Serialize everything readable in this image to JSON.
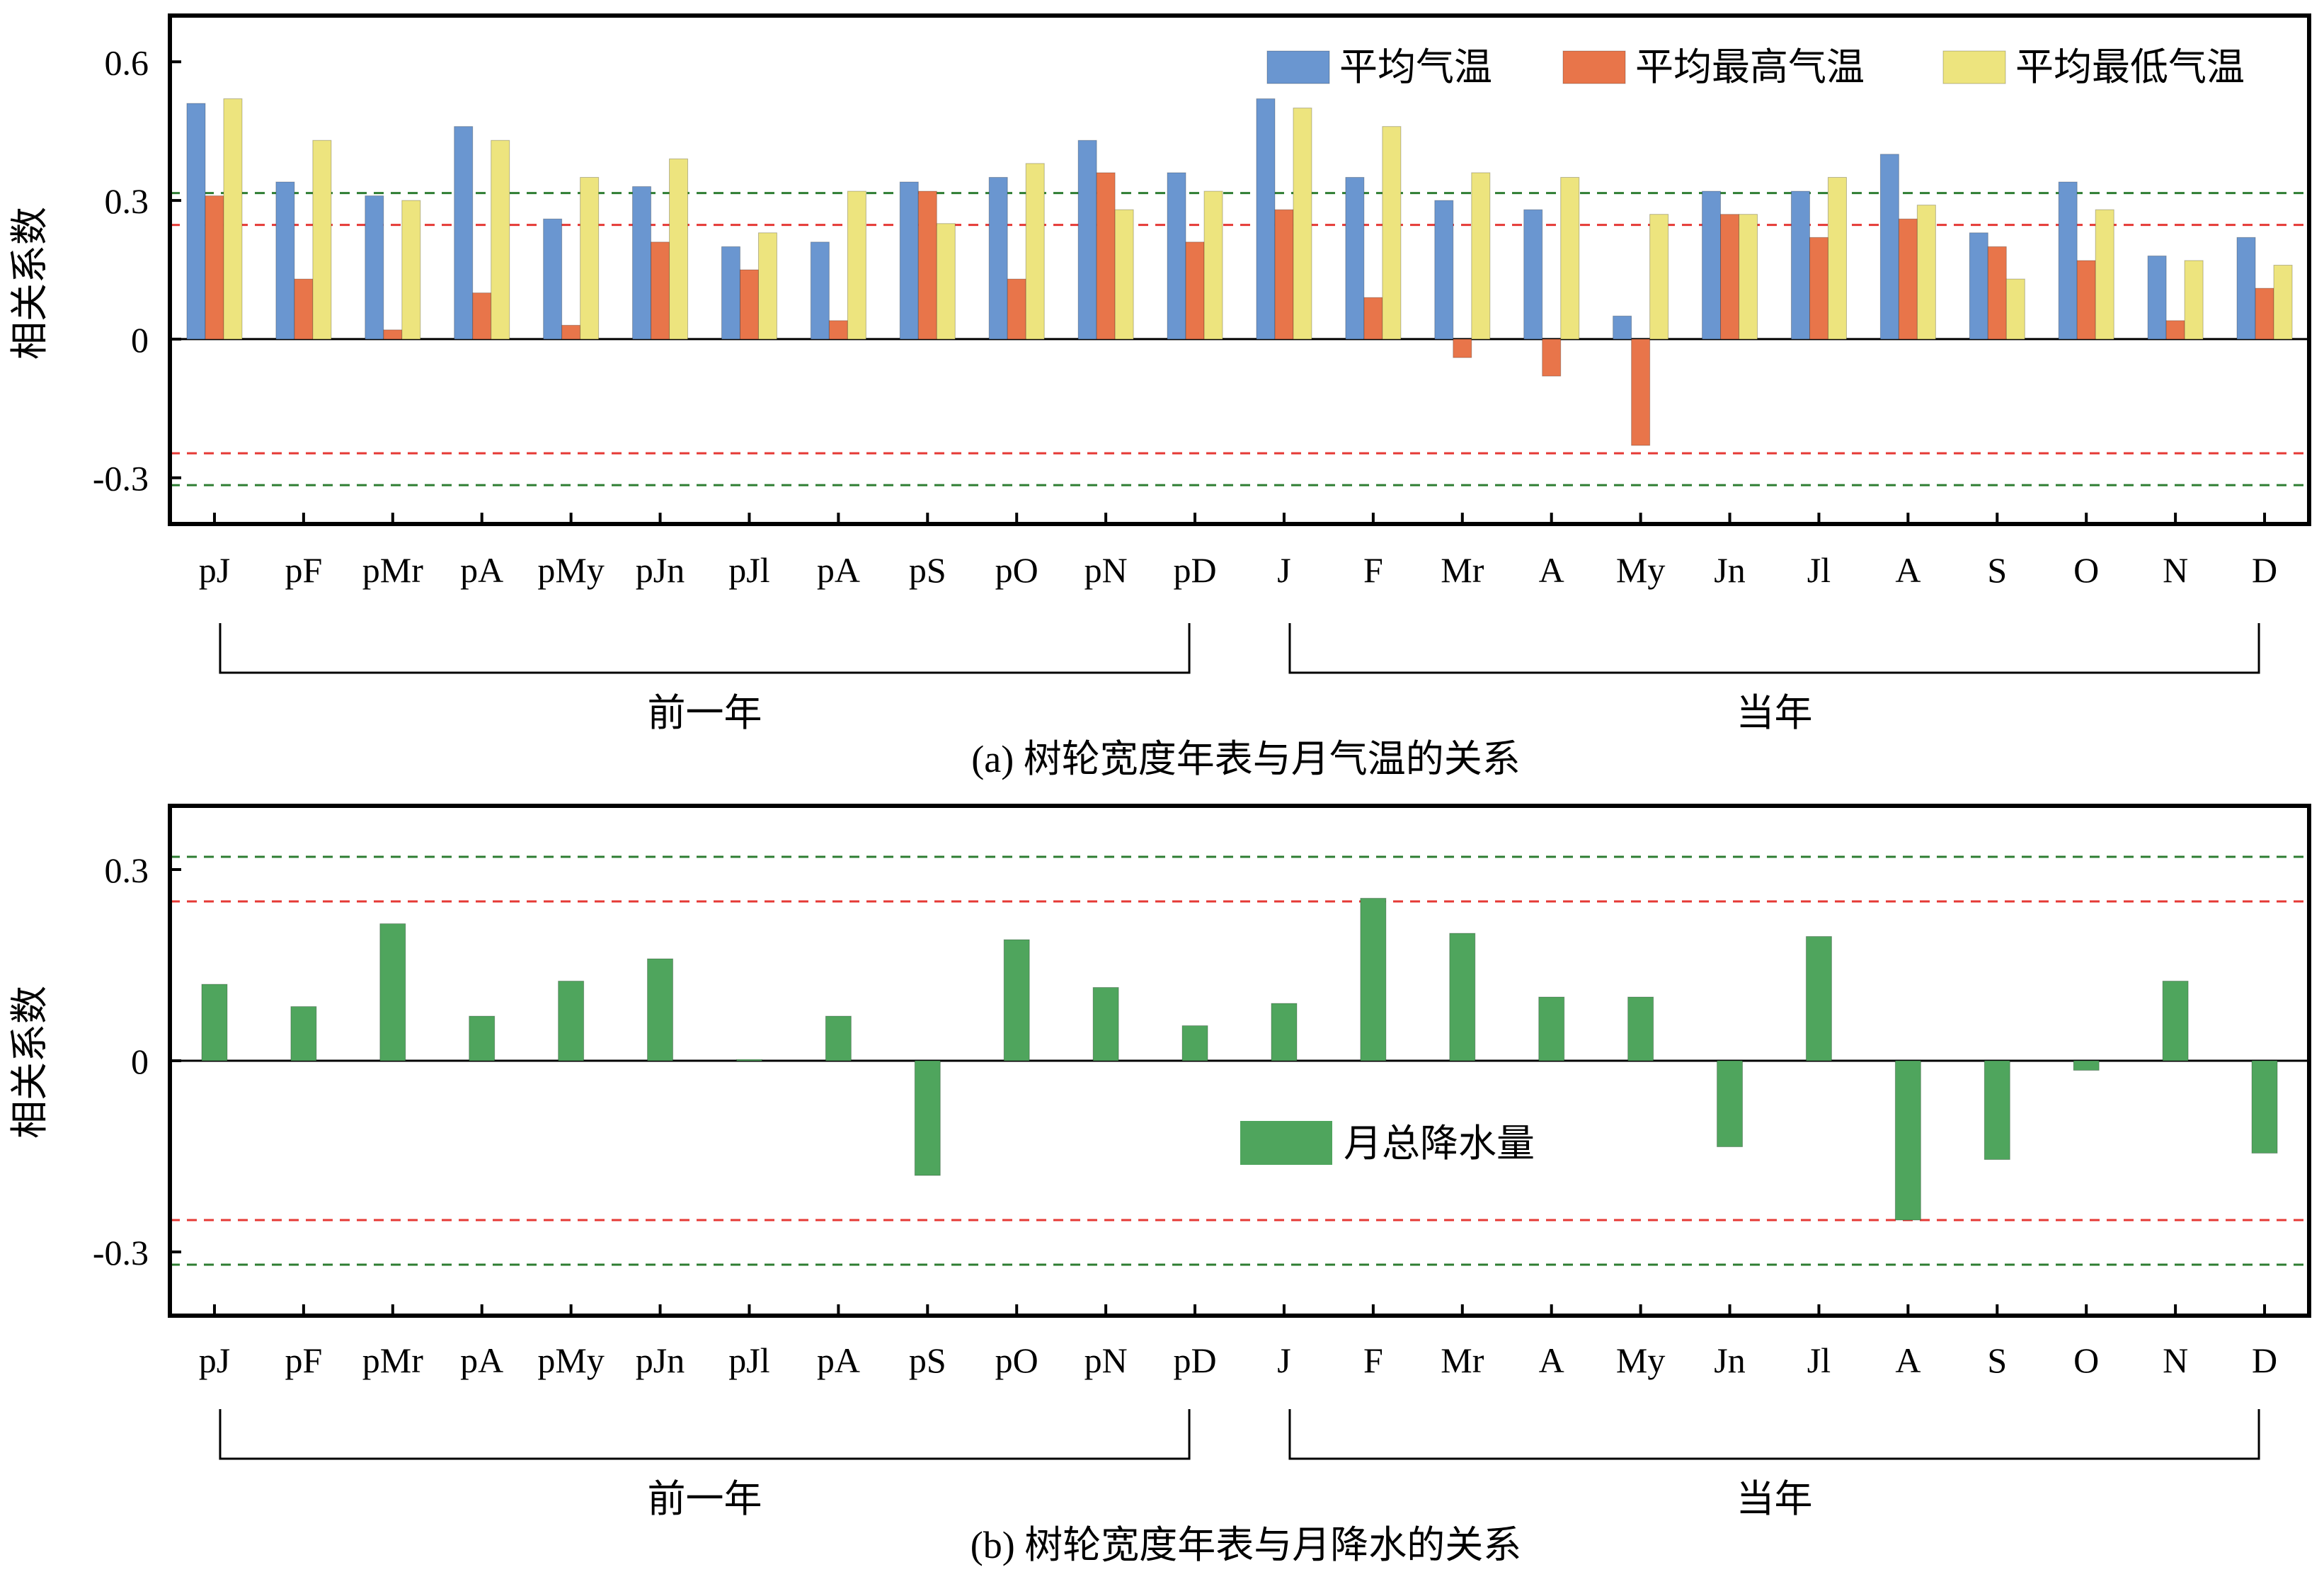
{
  "chart_data": [
    {
      "id": "a",
      "type": "bar",
      "ylabel": "相关系数",
      "ylim": [
        -0.4,
        0.7
      ],
      "yticks": [
        0.6,
        0.3,
        0,
        -0.3
      ],
      "ytick_labels": [
        "0.6",
        "0.3",
        "0",
        "-0.3"
      ],
      "categories": [
        "pJ",
        "pF",
        "pMr",
        "pA",
        "pMy",
        "pJn",
        "pJl",
        "pA",
        "pS",
        "pO",
        "pN",
        "pD",
        "J",
        "F",
        "Mr",
        "A",
        "My",
        "Jn",
        "Jl",
        "A",
        "S",
        "O",
        "N",
        "D"
      ],
      "series": [
        {
          "name": "平均气温",
          "color": "#6a96d0",
          "values": [
            0.51,
            0.34,
            0.31,
            0.46,
            0.26,
            0.33,
            0.2,
            0.21,
            0.34,
            0.35,
            0.43,
            0.36,
            0.52,
            0.35,
            0.3,
            0.28,
            0.05,
            0.32,
            0.32,
            0.4,
            0.23,
            0.34,
            0.18,
            0.22
          ]
        },
        {
          "name": "平均最高气温",
          "color": "#e8754a",
          "values": [
            0.31,
            0.13,
            0.02,
            0.1,
            0.03,
            0.21,
            0.15,
            0.04,
            0.32,
            0.13,
            0.36,
            0.21,
            0.28,
            0.09,
            -0.04,
            -0.08,
            -0.23,
            0.27,
            0.22,
            0.26,
            0.2,
            0.17,
            0.04,
            0.11
          ]
        },
        {
          "name": "平均最低气温",
          "color": "#ede47e",
          "values": [
            0.52,
            0.43,
            0.3,
            0.43,
            0.35,
            0.39,
            0.23,
            0.32,
            0.25,
            0.38,
            0.28,
            0.32,
            0.5,
            0.46,
            0.36,
            0.35,
            0.27,
            0.27,
            0.35,
            0.29,
            0.13,
            0.28,
            0.17,
            0.16
          ]
        }
      ],
      "reference_lines": [
        {
          "value": 0.316,
          "color": "#2e7d32"
        },
        {
          "value": 0.247,
          "color": "#e53935"
        },
        {
          "value": -0.247,
          "color": "#e53935"
        },
        {
          "value": -0.316,
          "color": "#2e7d32"
        }
      ],
      "legend_position": "top-right",
      "groups": [
        {
          "label": "前一年",
          "from": 0,
          "to": 11
        },
        {
          "label": "当年",
          "from": 12,
          "to": 23
        }
      ],
      "caption": "(a) 树轮宽度年表与月气温的关系"
    },
    {
      "id": "b",
      "type": "bar",
      "ylabel": "相关系数",
      "ylim": [
        -0.4,
        0.4
      ],
      "yticks": [
        0.3,
        0,
        -0.3
      ],
      "ytick_labels": [
        "0.3",
        "0",
        "-0.3"
      ],
      "categories": [
        "pJ",
        "pF",
        "pMr",
        "pA",
        "pMy",
        "pJn",
        "pJl",
        "pA",
        "pS",
        "pO",
        "pN",
        "pD",
        "J",
        "F",
        "Mr",
        "A",
        "My",
        "Jn",
        "Jl",
        "A",
        "S",
        "O",
        "N",
        "D"
      ],
      "series": [
        {
          "name": "月总降水量",
          "color": "#4fa55d",
          "values": [
            0.12,
            0.085,
            0.215,
            0.07,
            0.125,
            0.16,
            0.002,
            0.07,
            -0.18,
            0.19,
            0.115,
            0.055,
            0.09,
            0.255,
            0.2,
            0.1,
            0.1,
            -0.135,
            0.195,
            -0.25,
            -0.155,
            -0.015,
            0.125,
            -0.145
          ]
        }
      ],
      "reference_lines": [
        {
          "value": 0.32,
          "color": "#2e7d32"
        },
        {
          "value": 0.25,
          "color": "#e53935"
        },
        {
          "value": -0.25,
          "color": "#e53935"
        },
        {
          "value": -0.32,
          "color": "#2e7d32"
        }
      ],
      "legend_position": "center",
      "groups": [
        {
          "label": "前一年",
          "from": 0,
          "to": 11
        },
        {
          "label": "当年",
          "from": 12,
          "to": 23
        }
      ],
      "caption": "(b) 树轮宽度年表与月降水的关系"
    }
  ]
}
